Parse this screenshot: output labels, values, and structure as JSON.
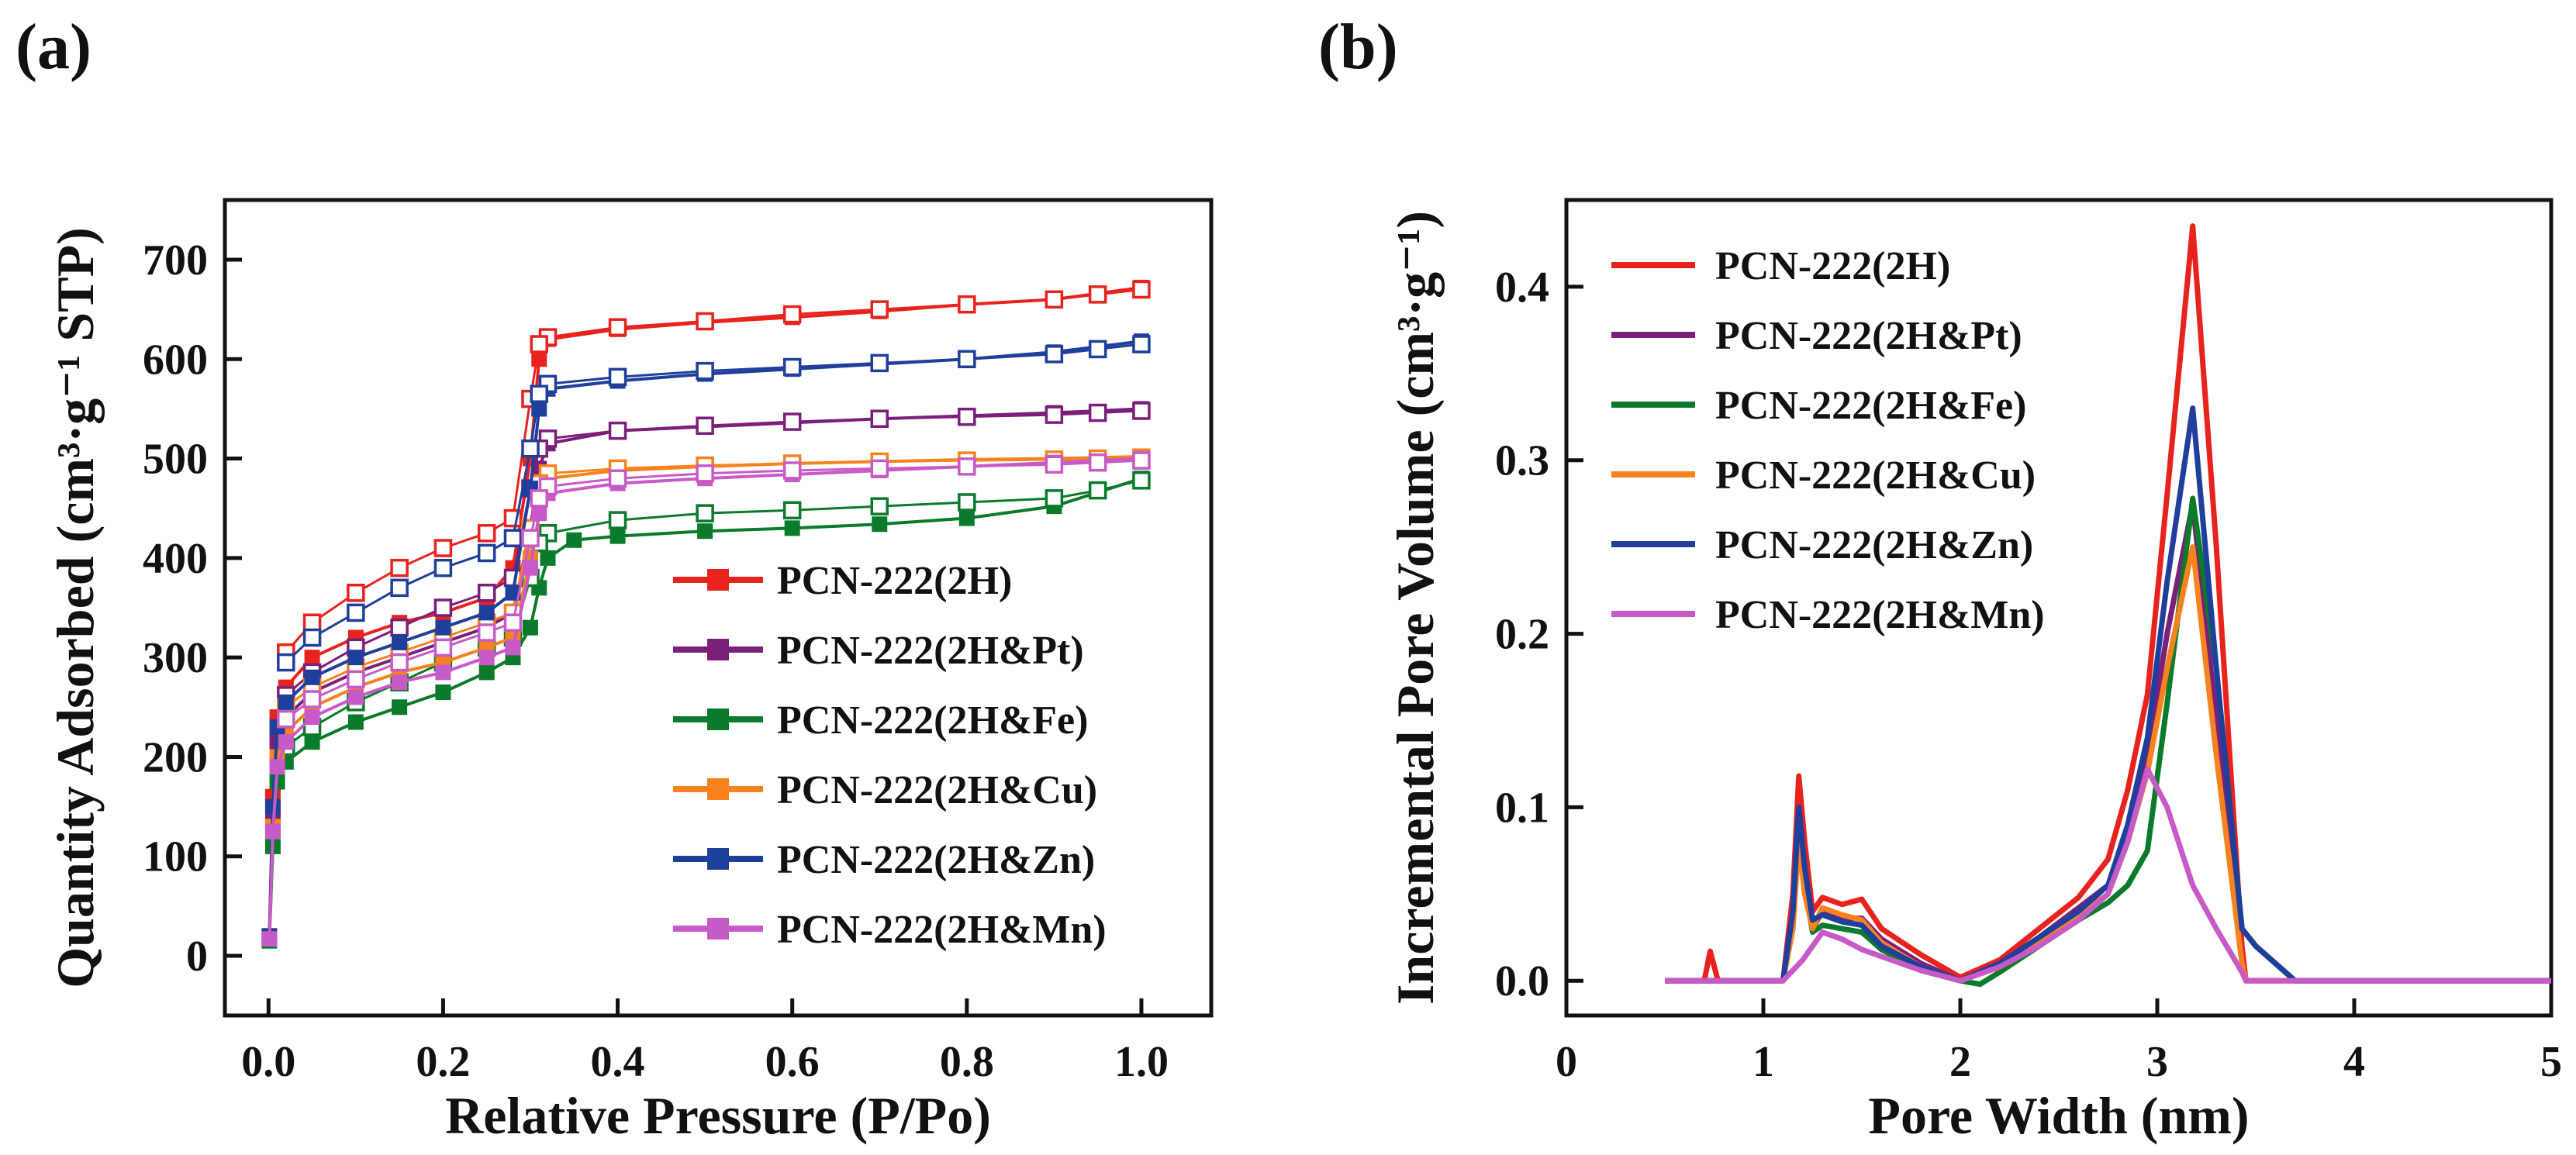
{
  "chart_data": [
    {
      "panel_label": "(a)",
      "type": "scatter",
      "title": "",
      "xlabel": "Relative Pressure (P/Po)",
      "ylabel": "Quantity Adsorbed (cm³·g⁻¹ STP)",
      "xlim": [
        -0.05,
        1.08
      ],
      "ylim": [
        -60,
        760
      ],
      "xticks": [
        "0.0",
        "0.2",
        "0.4",
        "0.6",
        "0.8",
        "1.0"
      ],
      "xtick_values": [
        0,
        0.2,
        0.4,
        0.6,
        0.8,
        1.0
      ],
      "yticks": [
        "0",
        "100",
        "200",
        "300",
        "400",
        "500",
        "600",
        "700"
      ],
      "ytick_values": [
        0,
        100,
        200,
        300,
        400,
        500,
        600,
        700
      ],
      "legend_position": "center-right",
      "markers": "filled squares = adsorption branch, open squares = desorption branch",
      "series": [
        {
          "name": "PCN-222(2H)",
          "color": "#e8231d",
          "adsorption": {
            "x": [
              0.001,
              0.005,
              0.01,
              0.02,
              0.05,
              0.1,
              0.15,
              0.2,
              0.25,
              0.28,
              0.3,
              0.31,
              0.32,
              0.4,
              0.5,
              0.6,
              0.7,
              0.8,
              0.9,
              1.0
            ],
            "y": [
              20,
              160,
              240,
              270,
              300,
              320,
              335,
              345,
              360,
              390,
              500,
              600,
              620,
              630,
              637,
              642,
              648,
              655,
              660,
              672
            ]
          },
          "desorption": {
            "x": [
              1.0,
              0.95,
              0.9,
              0.8,
              0.7,
              0.6,
              0.5,
              0.4,
              0.32,
              0.31,
              0.3,
              0.28,
              0.25,
              0.2,
              0.15,
              0.1,
              0.05,
              0.02
            ],
            "y": [
              670,
              665,
              660,
              655,
              650,
              645,
              638,
              632,
              622,
              615,
              560,
              440,
              425,
              410,
              390,
              365,
              335,
              305
            ]
          }
        },
        {
          "name": "PCN-222(2H&Pt)",
          "color": "#7b1f7a",
          "adsorption": {
            "x": [
              0.001,
              0.005,
              0.01,
              0.02,
              0.05,
              0.1,
              0.15,
              0.2,
              0.25,
              0.28,
              0.3,
              0.31,
              0.32,
              0.4,
              0.5,
              0.6,
              0.7,
              0.8,
              0.9,
              1.0
            ],
            "y": [
              18,
              140,
              215,
              240,
              265,
              285,
              300,
              315,
              330,
              345,
              430,
              490,
              515,
              528,
              532,
              536,
              540,
              543,
              546,
              550
            ]
          },
          "desorption": {
            "x": [
              1.0,
              0.95,
              0.9,
              0.8,
              0.7,
              0.6,
              0.5,
              0.4,
              0.32,
              0.31,
              0.3,
              0.28,
              0.25,
              0.2,
              0.15,
              0.1,
              0.05,
              0.02
            ],
            "y": [
              548,
              546,
              544,
              542,
              540,
              537,
              533,
              528,
              520,
              510,
              470,
              380,
              365,
              350,
              330,
              310,
              285,
              262
            ]
          }
        },
        {
          "name": "PCN-222(2H&Fe)",
          "color": "#0a7a2b",
          "adsorption": {
            "x": [
              0.001,
              0.005,
              0.01,
              0.02,
              0.05,
              0.1,
              0.15,
              0.2,
              0.25,
              0.28,
              0.3,
              0.31,
              0.32,
              0.35,
              0.4,
              0.5,
              0.6,
              0.7,
              0.8,
              0.9,
              1.0
            ],
            "y": [
              15,
              110,
              175,
              195,
              215,
              235,
              250,
              265,
              285,
              300,
              330,
              370,
              400,
              418,
              422,
              427,
              430,
              434,
              440,
              452,
              480
            ]
          },
          "desorption": {
            "x": [
              1.0,
              0.95,
              0.9,
              0.8,
              0.7,
              0.6,
              0.5,
              0.4,
              0.32,
              0.31,
              0.3,
              0.28,
              0.25,
              0.2,
              0.15,
              0.1,
              0.05,
              0.02
            ],
            "y": [
              478,
              468,
              460,
              456,
              452,
              448,
              445,
              438,
              425,
              415,
              380,
              320,
              310,
              295,
              275,
              255,
              230,
              210
            ]
          }
        },
        {
          "name": "PCN-222(2H&Cu)",
          "color": "#f7821e",
          "adsorption": {
            "x": [
              0.001,
              0.005,
              0.01,
              0.02,
              0.05,
              0.1,
              0.15,
              0.2,
              0.25,
              0.28,
              0.3,
              0.31,
              0.32,
              0.4,
              0.5,
              0.6,
              0.7,
              0.8,
              0.9,
              1.0
            ],
            "y": [
              18,
              130,
              200,
              225,
              250,
              270,
              285,
              295,
              310,
              320,
              400,
              460,
              480,
              488,
              492,
              495,
              497,
              499,
              500,
              502
            ]
          },
          "desorption": {
            "x": [
              1.0,
              0.95,
              0.9,
              0.8,
              0.7,
              0.6,
              0.5,
              0.4,
              0.32,
              0.31,
              0.3,
              0.28,
              0.25,
              0.2,
              0.15,
              0.1,
              0.05,
              0.02
            ],
            "y": [
              501,
              500,
              499,
              498,
              497,
              495,
              493,
              490,
              485,
              475,
              430,
              345,
              335,
              320,
              305,
              290,
              270,
              250
            ]
          }
        },
        {
          "name": "PCN-222(2H&Zn)",
          "color": "#1f3f9c",
          "adsorption": {
            "x": [
              0.001,
              0.005,
              0.01,
              0.02,
              0.05,
              0.1,
              0.15,
              0.2,
              0.25,
              0.28,
              0.3,
              0.31,
              0.32,
              0.4,
              0.5,
              0.6,
              0.7,
              0.8,
              0.9,
              1.0
            ],
            "y": [
              20,
              150,
              230,
              255,
              280,
              300,
              315,
              330,
              345,
              365,
              470,
              550,
              570,
              578,
              585,
              590,
              595,
              600,
              607,
              618
            ]
          },
          "desorption": {
            "x": [
              1.0,
              0.95,
              0.9,
              0.8,
              0.7,
              0.6,
              0.5,
              0.4,
              0.32,
              0.31,
              0.3,
              0.28,
              0.25,
              0.2,
              0.15,
              0.1,
              0.05,
              0.02
            ],
            "y": [
              615,
              610,
              605,
              600,
              596,
              592,
              588,
              582,
              575,
              565,
              510,
              420,
              405,
              390,
              370,
              345,
              320,
              295
            ]
          }
        },
        {
          "name": "PCN-222(2H&Mn)",
          "color": "#c85ac8",
          "adsorption": {
            "x": [
              0.001,
              0.005,
              0.01,
              0.02,
              0.05,
              0.1,
              0.15,
              0.2,
              0.25,
              0.28,
              0.3,
              0.31,
              0.32,
              0.4,
              0.5,
              0.6,
              0.7,
              0.8,
              0.9,
              1.0
            ],
            "y": [
              17,
              125,
              190,
              215,
              240,
              260,
              275,
              285,
              300,
              310,
              390,
              445,
              465,
              475,
              480,
              484,
              488,
              492,
              496,
              500
            ]
          },
          "desorption": {
            "x": [
              1.0,
              0.95,
              0.9,
              0.8,
              0.7,
              0.6,
              0.5,
              0.4,
              0.32,
              0.31,
              0.3,
              0.28,
              0.25,
              0.2,
              0.15,
              0.1,
              0.05,
              0.02
            ],
            "y": [
              498,
              496,
              494,
              492,
              490,
              488,
              485,
              480,
              472,
              460,
              420,
              335,
              325,
              310,
              295,
              278,
              258,
              238
            ]
          }
        }
      ]
    },
    {
      "panel_label": "(b)",
      "type": "line",
      "title": "",
      "xlabel": "Pore Width (nm)",
      "ylabel": "Incremental Pore Volume (cm³·g⁻¹)",
      "xlim": [
        0,
        5
      ],
      "ylim": [
        -0.02,
        0.45
      ],
      "xticks": [
        "0",
        "1",
        "2",
        "3",
        "4",
        "5"
      ],
      "xtick_values": [
        0,
        1,
        2,
        3,
        4,
        5
      ],
      "yticks": [
        "0.0",
        "0.1",
        "0.2",
        "0.3",
        "0.4"
      ],
      "ytick_values": [
        0,
        0.1,
        0.2,
        0.3,
        0.4
      ],
      "legend_position": "top-left",
      "series": [
        {
          "name": "PCN-222(2H)",
          "color": "#e8231d",
          "x": [
            0.5,
            0.7,
            0.73,
            0.77,
            1.0,
            1.1,
            1.15,
            1.18,
            1.21,
            1.25,
            1.3,
            1.4,
            1.5,
            1.6,
            1.8,
            2.0,
            2.2,
            2.4,
            2.6,
            2.75,
            2.85,
            2.95,
            3.05,
            3.18,
            3.3,
            3.43,
            3.45,
            3.6,
            3.8,
            5.0
          ],
          "y": [
            0,
            0,
            0.017,
            0,
            0,
            0,
            0.05,
            0.118,
            0.08,
            0.04,
            0.048,
            0.044,
            0.047,
            0.03,
            0.015,
            0.002,
            0.012,
            0.03,
            0.048,
            0.07,
            0.11,
            0.165,
            0.28,
            0.435,
            0.25,
            0.02,
            0,
            0,
            0,
            0
          ]
        },
        {
          "name": "PCN-222(2H&Pt)",
          "color": "#7b1f7a",
          "x": [
            0.5,
            1.0,
            1.1,
            1.15,
            1.18,
            1.21,
            1.25,
            1.3,
            1.4,
            1.5,
            1.6,
            1.8,
            2.0,
            2.2,
            2.4,
            2.6,
            2.75,
            2.85,
            2.95,
            3.05,
            3.18,
            3.3,
            3.43,
            3.5,
            3.7,
            5.0
          ],
          "y": [
            0,
            0,
            0,
            0.04,
            0.095,
            0.06,
            0.03,
            0.04,
            0.036,
            0.036,
            0.024,
            0.01,
            0,
            0.01,
            0.025,
            0.042,
            0.055,
            0.085,
            0.13,
            0.2,
            0.275,
            0.15,
            0.03,
            0.02,
            0,
            0
          ]
        },
        {
          "name": "PCN-222(2H&Fe)",
          "color": "#0a7a2b",
          "x": [
            0.5,
            1.0,
            1.1,
            1.15,
            1.18,
            1.21,
            1.25,
            1.3,
            1.4,
            1.5,
            1.6,
            1.8,
            2.0,
            2.1,
            2.2,
            2.4,
            2.6,
            2.75,
            2.85,
            2.95,
            3.05,
            3.18,
            3.3,
            3.43,
            3.5,
            3.7,
            5.0
          ],
          "y": [
            0,
            0,
            0,
            0.035,
            0.085,
            0.055,
            0.028,
            0.032,
            0.03,
            0.028,
            0.018,
            0.006,
            0,
            -0.002,
            0.005,
            0.02,
            0.035,
            0.045,
            0.055,
            0.075,
            0.16,
            0.278,
            0.18,
            0.03,
            0.02,
            0,
            0
          ]
        },
        {
          "name": "PCN-222(2H&Cu)",
          "color": "#f7821e",
          "x": [
            0.5,
            1.0,
            1.1,
            1.15,
            1.18,
            1.21,
            1.25,
            1.3,
            1.4,
            1.5,
            1.6,
            1.8,
            2.0,
            2.2,
            2.4,
            2.6,
            2.75,
            2.85,
            2.95,
            3.05,
            3.18,
            3.3,
            3.43,
            3.45,
            5.0
          ],
          "y": [
            0,
            0,
            0,
            0.03,
            0.08,
            0.05,
            0.03,
            0.042,
            0.038,
            0.035,
            0.022,
            0.008,
            0,
            0.008,
            0.022,
            0.038,
            0.05,
            0.08,
            0.12,
            0.18,
            0.25,
            0.13,
            0.01,
            0,
            0
          ]
        },
        {
          "name": "PCN-222(2H&Zn)",
          "color": "#1f3f9c",
          "x": [
            0.5,
            1.0,
            1.1,
            1.15,
            1.18,
            1.21,
            1.25,
            1.3,
            1.4,
            1.5,
            1.6,
            1.8,
            2.0,
            2.2,
            2.4,
            2.6,
            2.75,
            2.85,
            2.95,
            3.05,
            3.18,
            3.3,
            3.43,
            3.5,
            3.7,
            5.0
          ],
          "y": [
            0,
            0,
            0,
            0.04,
            0.1,
            0.065,
            0.035,
            0.038,
            0.034,
            0.032,
            0.02,
            0.008,
            0,
            0.01,
            0.025,
            0.04,
            0.055,
            0.09,
            0.14,
            0.23,
            0.33,
            0.18,
            0.03,
            0.02,
            0,
            0
          ]
        },
        {
          "name": "PCN-222(2H&Mn)",
          "color": "#c85ac8",
          "x": [
            0.5,
            1.0,
            1.1,
            1.2,
            1.3,
            1.4,
            1.5,
            1.6,
            1.8,
            2.0,
            2.2,
            2.4,
            2.6,
            2.75,
            2.85,
            2.95,
            3.05,
            3.18,
            3.3,
            3.43,
            3.45,
            5.0
          ],
          "y": [
            0,
            0,
            0,
            0.012,
            0.028,
            0.024,
            0.018,
            0.014,
            0.006,
            0,
            0.008,
            0.02,
            0.035,
            0.05,
            0.08,
            0.122,
            0.1,
            0.055,
            0.03,
            0.005,
            0,
            0
          ]
        }
      ]
    }
  ]
}
